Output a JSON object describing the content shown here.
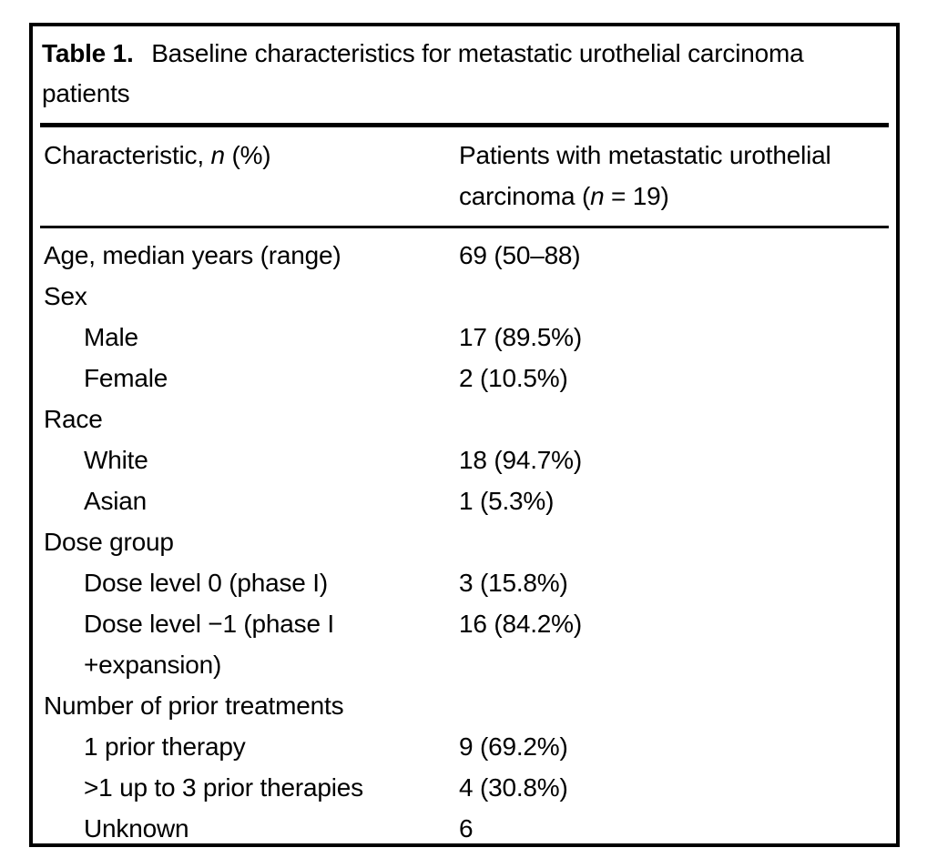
{
  "table": {
    "label": "Table 1.",
    "caption": "Baseline characteristics for metastatic urothelial carcinoma\npatients",
    "header": {
      "col1": {
        "pre": "Characteristic, ",
        "italic": "n",
        "post": " (%)"
      },
      "col2": {
        "pre": "Patients with metastatic urothelial\ncarcinoma (",
        "italic": "n",
        "post": " = 19)"
      }
    },
    "rows": [
      {
        "label": "Age, median years (range)",
        "value": "69 (50–88)"
      },
      {
        "label": "Sex",
        "value": ""
      },
      {
        "label": "Male",
        "value": "17 (89.5%)"
      },
      {
        "label": "Female",
        "value": "2 (10.5%)"
      },
      {
        "label": "Race",
        "value": ""
      },
      {
        "label": "White",
        "value": "18 (94.7%)"
      },
      {
        "label": "Asian",
        "value": "1 (5.3%)"
      },
      {
        "label": "Dose group",
        "value": ""
      },
      {
        "label": "Dose level 0 (phase I)",
        "value": "3 (15.8%)"
      },
      {
        "label": "Dose level −1 (phase I\n+expansion)",
        "value": "16 (84.2%)"
      },
      {
        "label": "Number of prior treatments",
        "value": ""
      },
      {
        "label": "1 prior therapy",
        "value": "9 (69.2%)"
      },
      {
        "label": ">1 up to 3 prior therapies",
        "value": "4 (30.8%)"
      },
      {
        "label": "Unknown",
        "value": "6"
      }
    ],
    "colors": {
      "text": "#000000",
      "background": "#ffffff",
      "border": "#000000"
    }
  }
}
